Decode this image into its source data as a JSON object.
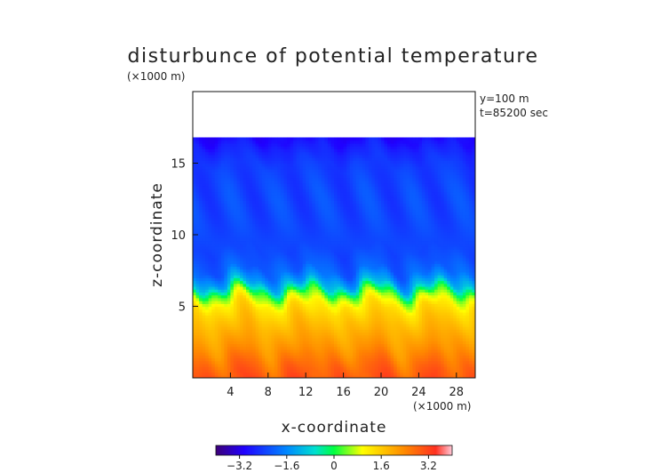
{
  "chart_data": {
    "type": "heatmap",
    "title": "disturbunce of potential temperature",
    "unit_top": "(×1000 m)",
    "unit_right": "(×1000 m)",
    "annotations": [
      "y=100 m",
      "t=85200 sec"
    ],
    "xlabel": "x-coordinate",
    "ylabel": "z-coordinate",
    "xlim": [
      0,
      30
    ],
    "ylim": [
      0,
      20
    ],
    "xticks": [
      4,
      8,
      12,
      16,
      20,
      24,
      28
    ],
    "yticks": [
      5,
      10,
      15
    ],
    "top_of_field_km": 16.8,
    "colorbar": {
      "min": -4,
      "max": 4,
      "ticks": [
        -3.2,
        -1.6,
        0,
        1.6,
        3.2
      ],
      "tick_labels": [
        "−3.2",
        "−1.6",
        "0",
        "1.6",
        "3.2"
      ]
    },
    "profile_levels_km": [
      0,
      1,
      2,
      3,
      4,
      5,
      5.8,
      6.6,
      7.5,
      9,
      11,
      13,
      15,
      16.2,
      16.8
    ],
    "profile_values": [
      3.0,
      2.7,
      2.3,
      2.0,
      1.7,
      1.3,
      0.5,
      -1.2,
      -2.0,
      -2.3,
      -2.3,
      -2.3,
      -2.4,
      -2.7,
      -3.0
    ]
  }
}
